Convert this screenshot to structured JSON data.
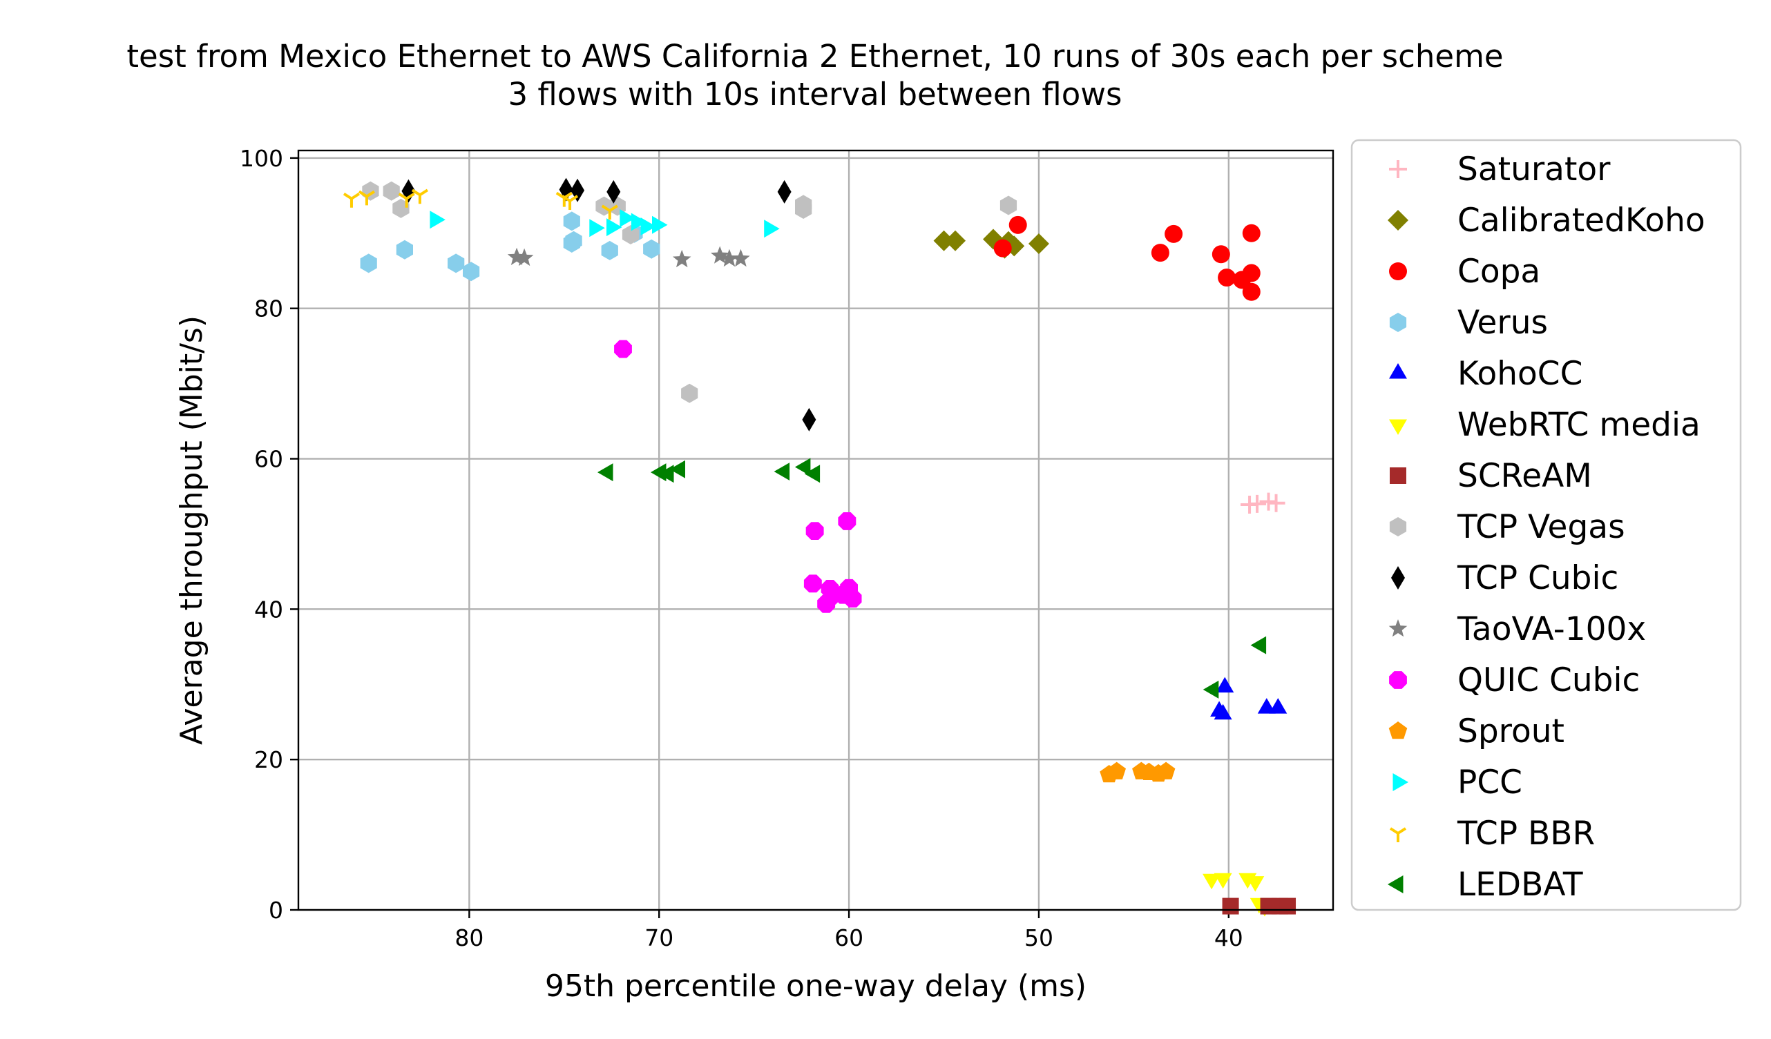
{
  "chart_data": {
    "type": "scatter",
    "title": "test from Mexico Ethernet to AWS California 2 Ethernet, 10 runs of 30s each per scheme",
    "subtitle": "3 flows with 10s interval between flows",
    "xlabel": "95th percentile one-way delay (ms)",
    "ylabel": "Average throughput (Mbit/s)",
    "xlim": [
      89,
      34.5
    ],
    "ylim": [
      0,
      101
    ],
    "x_inverted": true,
    "grid": true,
    "legend_position": "right, outside plot",
    "xticks": [
      80,
      70,
      60,
      50,
      40
    ],
    "yticks": [
      0,
      20,
      40,
      60,
      80,
      100
    ],
    "series": [
      {
        "name": "Saturator",
        "marker": "plus",
        "color": "#ffb6c1",
        "points": [
          [
            38.5,
            54
          ],
          [
            37.9,
            54.3
          ],
          [
            38.9,
            53.9
          ],
          [
            37.5,
            54.1
          ]
        ]
      },
      {
        "name": "CalibratedKoho",
        "marker": "diamond",
        "color": "#808000",
        "points": [
          [
            55.0,
            89
          ],
          [
            54.4,
            89
          ],
          [
            52.4,
            89.2
          ],
          [
            51.6,
            88.9
          ],
          [
            51.3,
            88.3
          ],
          [
            50.0,
            88.6
          ],
          [
            51.8,
            88.0
          ]
        ]
      },
      {
        "name": "Copa",
        "marker": "circle",
        "color": "#ff0000",
        "points": [
          [
            51.1,
            91.1
          ],
          [
            51.9,
            88.0
          ],
          [
            43.6,
            87.4
          ],
          [
            42.9,
            89.9
          ],
          [
            40.4,
            87.2
          ],
          [
            40.1,
            84.1
          ],
          [
            39.3,
            83.8
          ],
          [
            38.8,
            84.7
          ],
          [
            38.8,
            82.2
          ],
          [
            38.8,
            90
          ]
        ]
      },
      {
        "name": "Verus",
        "marker": "hexagon",
        "color": "#87ceeb",
        "points": [
          [
            85.3,
            86.0
          ],
          [
            83.4,
            87.8
          ],
          [
            80.7,
            86.0
          ],
          [
            79.9,
            84.9
          ],
          [
            74.6,
            91.6
          ],
          [
            74.5,
            89.0
          ],
          [
            74.6,
            88.7
          ],
          [
            72.6,
            87.7
          ],
          [
            70.4,
            87.9
          ],
          [
            71.3,
            90.0
          ]
        ]
      },
      {
        "name": "KohoCC",
        "marker": "triangle-up",
        "color": "#0000ff",
        "points": [
          [
            40.2,
            29.6
          ],
          [
            40.5,
            26.4
          ],
          [
            40.3,
            26.0
          ],
          [
            38.0,
            26.8
          ],
          [
            37.4,
            26.8
          ]
        ]
      },
      {
        "name": "WebRTC media",
        "marker": "triangle-down",
        "color": "#ffff00",
        "points": [
          [
            40.9,
            4.1
          ],
          [
            40.3,
            4.2
          ],
          [
            39.0,
            4.2
          ],
          [
            38.6,
            3.8
          ],
          [
            38.4,
            0.9
          ],
          [
            38.1,
            0.5
          ]
        ]
      },
      {
        "name": "SCReAM",
        "marker": "square",
        "color": "#a52a2a",
        "points": [
          [
            39.9,
            0.5
          ],
          [
            37.9,
            0.5
          ],
          [
            37.3,
            0.5
          ],
          [
            36.9,
            0.5
          ]
        ]
      },
      {
        "name": "TCP Vegas",
        "marker": "hexagon",
        "color": "#c0c0c0",
        "points": [
          [
            85.2,
            95.6
          ],
          [
            84.1,
            95.6
          ],
          [
            83.6,
            93.3
          ],
          [
            72.9,
            93.6
          ],
          [
            72.2,
            93.6
          ],
          [
            71.5,
            89.8
          ],
          [
            68.4,
            68.7
          ],
          [
            62.4,
            93.2
          ],
          [
            62.4,
            93.8
          ],
          [
            51.6,
            93.7
          ]
        ]
      },
      {
        "name": "TCP Cubic",
        "marker": "thin-diamond",
        "color": "#000000",
        "points": [
          [
            83.2,
            95.6
          ],
          [
            74.9,
            95.8
          ],
          [
            74.3,
            95.7
          ],
          [
            72.4,
            95.5
          ],
          [
            63.4,
            95.5
          ],
          [
            62.1,
            65.2
          ]
        ]
      },
      {
        "name": "TaoVA-100x",
        "marker": "star",
        "color": "#808080",
        "points": [
          [
            77.5,
            86.8
          ],
          [
            77.1,
            86.7
          ],
          [
            68.8,
            86.5
          ],
          [
            66.8,
            87.0
          ],
          [
            66.3,
            86.6
          ],
          [
            65.7,
            86.6
          ]
        ]
      },
      {
        "name": "QUIC Cubic",
        "marker": "octagon",
        "color": "#ff00ff",
        "points": [
          [
            71.9,
            74.6
          ],
          [
            61.8,
            50.4
          ],
          [
            60.1,
            51.7
          ],
          [
            61.9,
            43.4
          ],
          [
            61.2,
            40.7
          ],
          [
            61.0,
            42.7
          ],
          [
            60.9,
            41.8
          ],
          [
            60.0,
            42.8
          ],
          [
            60.3,
            41.9
          ],
          [
            59.8,
            41.4
          ]
        ]
      },
      {
        "name": "Sprout",
        "marker": "pentagon",
        "color": "#ff9900",
        "points": [
          [
            46.3,
            18.0
          ],
          [
            45.9,
            18.4
          ],
          [
            44.6,
            18.4
          ],
          [
            44.2,
            18.3
          ],
          [
            43.7,
            18.1
          ],
          [
            43.3,
            18.4
          ]
        ]
      },
      {
        "name": "PCC",
        "marker": "triangle-right",
        "color": "#00ffff",
        "points": [
          [
            81.8,
            91.8
          ],
          [
            73.4,
            90.7
          ],
          [
            72.5,
            90.8
          ],
          [
            71.8,
            92.0
          ],
          [
            71.2,
            91.5
          ],
          [
            70.7,
            90.9
          ],
          [
            70.1,
            91.1
          ],
          [
            64.2,
            90.6
          ]
        ]
      },
      {
        "name": "TCP BBR",
        "marker": "tri-down",
        "color": "#ffcc00",
        "points": [
          [
            86.2,
            94.6
          ],
          [
            85.4,
            94.9
          ],
          [
            83.3,
            94.6
          ],
          [
            82.6,
            95.1
          ],
          [
            75.0,
            94.7
          ],
          [
            74.7,
            94.3
          ],
          [
            72.6,
            93.0
          ]
        ]
      },
      {
        "name": "LEDBAT",
        "marker": "triangle-left",
        "color": "#008000",
        "points": [
          [
            72.7,
            58.2
          ],
          [
            69.9,
            58.2
          ],
          [
            69.5,
            58.0
          ],
          [
            68.9,
            58.6
          ],
          [
            63.4,
            58.3
          ],
          [
            62.3,
            58.9
          ],
          [
            61.8,
            58.0
          ],
          [
            40.8,
            29.3
          ],
          [
            38.3,
            35.2
          ]
        ]
      }
    ]
  }
}
